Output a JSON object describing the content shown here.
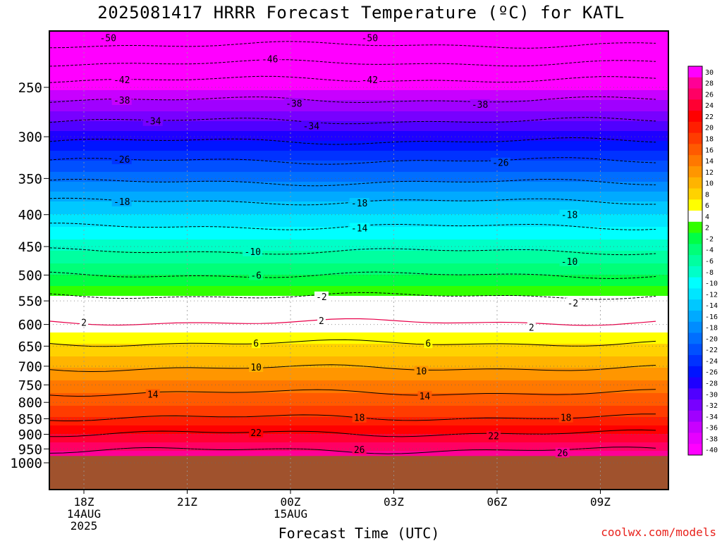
{
  "chart_data": {
    "type": "heatmap",
    "title": "2025081417 HRRR Forecast Temperature (ºC) for KATL",
    "xlabel": "Forecast Time (UTC)",
    "ylabel": "",
    "x_hours": [
      -1,
      11
    ],
    "x_ticks": [
      {
        "hour": 0,
        "label": "18Z",
        "sub": [
          "14AUG",
          "2025"
        ]
      },
      {
        "hour": 3,
        "label": "21Z",
        "sub": []
      },
      {
        "hour": 6,
        "label": "00Z",
        "sub": [
          "15AUG"
        ]
      },
      {
        "hour": 9,
        "label": "03Z",
        "sub": []
      },
      {
        "hour": 12,
        "label": "06Z",
        "sub": []
      },
      {
        "hour": 15,
        "label": "09Z",
        "sub": []
      }
    ],
    "y_ticks": [
      250,
      300,
      350,
      400,
      450,
      500,
      550,
      600,
      650,
      700,
      750,
      800,
      850,
      900,
      950,
      1000
    ],
    "ylim_hpa": [
      200,
      1000
    ],
    "surface_pressure_hpa": 975,
    "colorbar": {
      "labels": [
        30,
        28,
        26,
        24,
        22,
        20,
        18,
        16,
        14,
        12,
        10,
        8,
        6,
        4,
        2,
        -2,
        -4,
        -6,
        -8,
        -10,
        -12,
        -14,
        -16,
        -18,
        -20,
        -22,
        -24,
        -26,
        -28,
        -30,
        -32,
        -34,
        -36,
        -38,
        -40
      ],
      "colors": [
        "#ff00ff",
        "#ff0096",
        "#ff0064",
        "#ff0032",
        "#ff0000",
        "#ff1e00",
        "#ff3c00",
        "#ff5a00",
        "#ff7800",
        "#ff9600",
        "#ffb400",
        "#ffd200",
        "#ffff00",
        "#ffffff",
        "#32ff00",
        "#00ff46",
        "#00ff78",
        "#00ffa0",
        "#00ffc8",
        "#00ffff",
        "#00e6ff",
        "#00c8ff",
        "#00aaff",
        "#008cff",
        "#006eff",
        "#0050ff",
        "#0032ff",
        "#0014ff",
        "#1e00ff",
        "#5000ff",
        "#7800ff",
        "#a000ff",
        "#c800ff",
        "#e600ff",
        "#ff00ff"
      ]
    },
    "contour_labels": [
      {
        "v": "-50",
        "hour": 0.7,
        "p": 208
      },
      {
        "v": "-50",
        "hour": 8.3,
        "p": 208
      },
      {
        "v": "-46",
        "hour": 5.4,
        "p": 225
      },
      {
        "v": "-42",
        "hour": 1.1,
        "p": 243
      },
      {
        "v": "-42",
        "hour": 8.3,
        "p": 243
      },
      {
        "v": "-38",
        "hour": 1.1,
        "p": 262
      },
      {
        "v": "-38",
        "hour": 6.1,
        "p": 265
      },
      {
        "v": "-38",
        "hour": 11.5,
        "p": 266
      },
      {
        "v": "-34",
        "hour": 2.0,
        "p": 283
      },
      {
        "v": "-34",
        "hour": 6.6,
        "p": 288
      },
      {
        "v": "-26",
        "hour": 1.1,
        "p": 326
      },
      {
        "v": "-26",
        "hour": 12.1,
        "p": 330
      },
      {
        "v": "-18",
        "hour": 1.1,
        "p": 381
      },
      {
        "v": "-18",
        "hour": 8.0,
        "p": 383
      },
      {
        "v": "-18",
        "hour": 14.1,
        "p": 400
      },
      {
        "v": "-14",
        "hour": 8.0,
        "p": 420
      },
      {
        "v": "-10",
        "hour": 4.9,
        "p": 458
      },
      {
        "v": "-10",
        "hour": 14.1,
        "p": 475
      },
      {
        "v": "-6",
        "hour": 5.0,
        "p": 500
      },
      {
        "v": "-2",
        "hour": 6.9,
        "p": 541
      },
      {
        "v": "-2",
        "hour": 14.2,
        "p": 554
      },
      {
        "v": "2",
        "hour": 0.0,
        "p": 595
      },
      {
        "v": "2",
        "hour": 6.9,
        "p": 591
      },
      {
        "v": "2",
        "hour": 13.0,
        "p": 606
      },
      {
        "v": "6",
        "hour": 5.0,
        "p": 643
      },
      {
        "v": "6",
        "hour": 10.0,
        "p": 643
      },
      {
        "v": "10",
        "hour": 5.0,
        "p": 702
      },
      {
        "v": "10",
        "hour": 9.8,
        "p": 712
      },
      {
        "v": "14",
        "hour": 2.0,
        "p": 776
      },
      {
        "v": "14",
        "hour": 9.9,
        "p": 781
      },
      {
        "v": "18",
        "hour": 8.0,
        "p": 846
      },
      {
        "v": "18",
        "hour": 14.0,
        "p": 846
      },
      {
        "v": "22",
        "hour": 5.0,
        "p": 894
      },
      {
        "v": "22",
        "hour": 11.9,
        "p": 905
      },
      {
        "v": "26",
        "hour": 8.0,
        "p": 952
      },
      {
        "v": "26",
        "hour": 13.9,
        "p": 963
      }
    ]
  },
  "credit": "coolwx.com/models"
}
